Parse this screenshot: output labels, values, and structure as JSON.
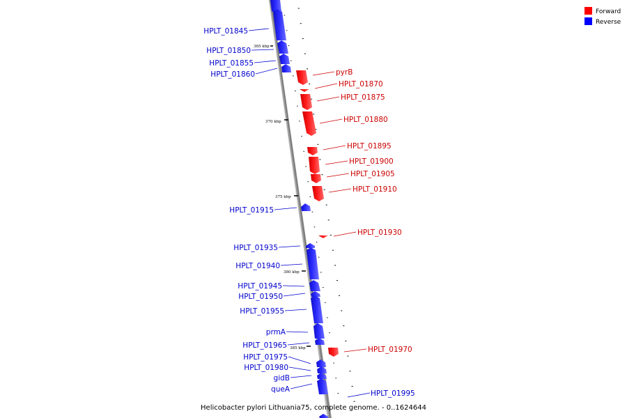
{
  "caption": "Helicobacter pylori Lithuania75, complete genome. - 0..1624644",
  "legend": [
    {
      "label": "Forward",
      "color": "#ff0000"
    },
    {
      "label": "Reverse",
      "color": "#0000ff"
    }
  ],
  "colors": {
    "forward": "#ff0000",
    "reverse": "#0000ff",
    "backbone": "#8c8c8c"
  },
  "scale_labels": [
    "365 kbp",
    "370 kbp",
    "375 kbp",
    "380 kbp",
    "385 kbp"
  ],
  "genes": [
    {
      "name": "HPLT_01845",
      "strand": "reverse"
    },
    {
      "name": "HPLT_01850",
      "strand": "reverse"
    },
    {
      "name": "HPLT_01855",
      "strand": "reverse"
    },
    {
      "name": "HPLT_01860",
      "strand": "reverse"
    },
    {
      "name": "pyrB",
      "strand": "forward"
    },
    {
      "name": "HPLT_01870",
      "strand": "forward"
    },
    {
      "name": "HPLT_01875",
      "strand": "forward"
    },
    {
      "name": "HPLT_01880",
      "strand": "forward"
    },
    {
      "name": "HPLT_01895",
      "strand": "forward"
    },
    {
      "name": "HPLT_01900",
      "strand": "forward"
    },
    {
      "name": "HPLT_01905",
      "strand": "forward"
    },
    {
      "name": "HPLT_01910",
      "strand": "forward"
    },
    {
      "name": "HPLT_01915",
      "strand": "reverse"
    },
    {
      "name": "HPLT_01930",
      "strand": "forward"
    },
    {
      "name": "HPLT_01935",
      "strand": "reverse"
    },
    {
      "name": "HPLT_01940",
      "strand": "reverse"
    },
    {
      "name": "HPLT_01945",
      "strand": "reverse"
    },
    {
      "name": "HPLT_01950",
      "strand": "reverse"
    },
    {
      "name": "HPLT_01955",
      "strand": "reverse"
    },
    {
      "name": "prmA",
      "strand": "reverse"
    },
    {
      "name": "HPLT_01965",
      "strand": "reverse"
    },
    {
      "name": "HPLT_01970",
      "strand": "forward"
    },
    {
      "name": "HPLT_01975",
      "strand": "reverse"
    },
    {
      "name": "HPLT_01980",
      "strand": "reverse"
    },
    {
      "name": "gidB",
      "strand": "reverse"
    },
    {
      "name": "queA",
      "strand": "reverse"
    },
    {
      "name": "HPLT_01995",
      "strand": "forward"
    }
  ]
}
